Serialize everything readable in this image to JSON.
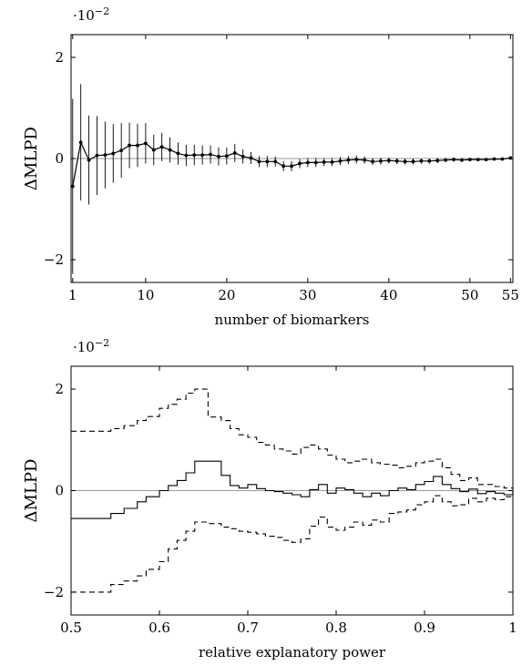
{
  "chart_data": [
    {
      "type": "line",
      "xlabel": "number of biomarkers",
      "ylabel": "ΔMLPD",
      "scale_label": "·10",
      "scale_exponent": "−2",
      "xlim": [
        0.8,
        55.3
      ],
      "ylim": [
        -2.45,
        2.45
      ],
      "xticks": [
        1,
        10,
        20,
        30,
        40,
        50,
        55
      ],
      "yticks": [
        2,
        0,
        -2
      ],
      "ytick_labels": [
        "2",
        "0",
        "−2"
      ],
      "error_bars": true,
      "series": [
        {
          "x": [
            1,
            2,
            3,
            4,
            5,
            6,
            7,
            8,
            9,
            10,
            11,
            12,
            13,
            14,
            15,
            16,
            17,
            18,
            19,
            20,
            21,
            22,
            23,
            24,
            25,
            26,
            27,
            28,
            29,
            30,
            31,
            32,
            33,
            34,
            35,
            36,
            37,
            38,
            39,
            40,
            41,
            42,
            43,
            44,
            45,
            46,
            47,
            48,
            49,
            50,
            51,
            52,
            53,
            54,
            55
          ],
          "y": [
            -0.55,
            0.32,
            -0.03,
            0.06,
            0.07,
            0.1,
            0.16,
            0.26,
            0.26,
            0.3,
            0.17,
            0.23,
            0.17,
            0.1,
            0.06,
            0.07,
            0.07,
            0.08,
            0.04,
            0.05,
            0.11,
            0.04,
            0.01,
            -0.06,
            -0.06,
            -0.06,
            -0.15,
            -0.15,
            -0.1,
            -0.08,
            -0.08,
            -0.07,
            -0.07,
            -0.05,
            -0.03,
            -0.02,
            -0.03,
            -0.06,
            -0.05,
            -0.04,
            -0.05,
            -0.06,
            -0.06,
            -0.05,
            -0.05,
            -0.04,
            -0.03,
            -0.02,
            -0.03,
            -0.02,
            -0.02,
            -0.02,
            -0.01,
            -0.01,
            0.01
          ],
          "err": [
            1.73,
            1.15,
            0.88,
            0.78,
            0.66,
            0.58,
            0.54,
            0.45,
            0.43,
            0.4,
            0.3,
            0.28,
            0.25,
            0.22,
            0.21,
            0.2,
            0.19,
            0.18,
            0.18,
            0.17,
            0.18,
            0.14,
            0.12,
            0.11,
            0.11,
            0.1,
            0.1,
            0.1,
            0.09,
            0.09,
            0.09,
            0.08,
            0.08,
            0.08,
            0.08,
            0.08,
            0.07,
            0.07,
            0.07,
            0.06,
            0.06,
            0.06,
            0.06,
            0.05,
            0.05,
            0.05,
            0.04,
            0.04,
            0.04,
            0.03,
            0.03,
            0.03,
            0.02,
            0.02,
            0.02
          ]
        }
      ]
    },
    {
      "type": "line",
      "xlabel": "relative explanatory power",
      "ylabel": "ΔMLPD",
      "scale_label": "·10",
      "scale_exponent": "−2",
      "xlim": [
        0.5,
        1.0
      ],
      "ylim": [
        -2.45,
        2.45
      ],
      "xticks": [
        0.5,
        0.6,
        0.7,
        0.8,
        0.9,
        1
      ],
      "xtick_labels": [
        "0.5",
        "0.6",
        "0.7",
        "0.8",
        "0.9",
        "1"
      ],
      "yticks": [
        2,
        0,
        -2
      ],
      "ytick_labels": [
        "2",
        "0",
        "−2"
      ],
      "series": [
        {
          "style": "solid",
          "x": [
            0.5,
            0.54,
            0.545,
            0.56,
            0.575,
            0.585,
            0.6,
            0.61,
            0.62,
            0.63,
            0.64,
            0.655,
            0.67,
            0.68,
            0.69,
            0.7,
            0.71,
            0.72,
            0.73,
            0.74,
            0.75,
            0.76,
            0.77,
            0.78,
            0.79,
            0.8,
            0.81,
            0.82,
            0.83,
            0.84,
            0.85,
            0.86,
            0.87,
            0.88,
            0.89,
            0.9,
            0.91,
            0.92,
            0.93,
            0.94,
            0.95,
            0.96,
            0.97,
            0.98,
            0.99,
            1.0
          ],
          "y": [
            -0.55,
            -0.55,
            -0.45,
            -0.35,
            -0.22,
            -0.12,
            0.0,
            0.1,
            0.2,
            0.35,
            0.58,
            0.58,
            0.3,
            0.1,
            0.05,
            0.12,
            0.04,
            0.0,
            -0.02,
            -0.05,
            -0.08,
            -0.12,
            0.02,
            0.12,
            -0.05,
            0.05,
            0.02,
            -0.05,
            -0.12,
            -0.05,
            -0.1,
            0.0,
            0.05,
            0.02,
            0.12,
            0.18,
            0.28,
            0.12,
            0.04,
            -0.02,
            0.03,
            -0.06,
            -0.02,
            -0.05,
            -0.08,
            0.0
          ]
        },
        {
          "style": "dashed",
          "x": [
            0.5,
            0.54,
            0.545,
            0.56,
            0.575,
            0.585,
            0.6,
            0.61,
            0.62,
            0.63,
            0.64,
            0.655,
            0.67,
            0.68,
            0.69,
            0.7,
            0.71,
            0.72,
            0.73,
            0.74,
            0.75,
            0.76,
            0.77,
            0.78,
            0.79,
            0.8,
            0.81,
            0.82,
            0.83,
            0.84,
            0.85,
            0.86,
            0.87,
            0.88,
            0.89,
            0.9,
            0.91,
            0.92,
            0.93,
            0.94,
            0.95,
            0.96,
            0.97,
            0.98,
            0.99,
            1.0
          ],
          "y": [
            1.17,
            1.17,
            1.22,
            1.28,
            1.38,
            1.46,
            1.62,
            1.7,
            1.8,
            1.92,
            2.0,
            1.45,
            1.38,
            1.22,
            1.1,
            1.05,
            0.95,
            0.9,
            0.82,
            0.78,
            0.72,
            0.85,
            0.9,
            0.82,
            0.7,
            0.62,
            0.55,
            0.58,
            0.62,
            0.55,
            0.52,
            0.5,
            0.45,
            0.48,
            0.55,
            0.58,
            0.62,
            0.45,
            0.32,
            0.2,
            0.25,
            0.12,
            0.12,
            0.08,
            0.05,
            0.0
          ]
        },
        {
          "style": "dashed",
          "x": [
            0.5,
            0.54,
            0.545,
            0.56,
            0.575,
            0.585,
            0.6,
            0.61,
            0.62,
            0.63,
            0.64,
            0.655,
            0.67,
            0.68,
            0.69,
            0.7,
            0.71,
            0.72,
            0.73,
            0.74,
            0.75,
            0.76,
            0.77,
            0.78,
            0.79,
            0.8,
            0.81,
            0.82,
            0.83,
            0.84,
            0.85,
            0.86,
            0.87,
            0.88,
            0.89,
            0.9,
            0.91,
            0.92,
            0.93,
            0.94,
            0.95,
            0.96,
            0.97,
            0.98,
            0.99,
            1.0
          ],
          "y": [
            -2.0,
            -2.0,
            -1.85,
            -1.78,
            -1.68,
            -1.55,
            -1.4,
            -1.15,
            -0.98,
            -0.8,
            -0.62,
            -0.65,
            -0.72,
            -0.75,
            -0.8,
            -0.82,
            -0.85,
            -0.9,
            -0.92,
            -0.98,
            -1.02,
            -0.95,
            -0.7,
            -0.52,
            -0.72,
            -0.78,
            -0.72,
            -0.62,
            -0.68,
            -0.58,
            -0.62,
            -0.45,
            -0.42,
            -0.38,
            -0.28,
            -0.22,
            -0.1,
            -0.22,
            -0.3,
            -0.28,
            -0.15,
            -0.22,
            -0.15,
            -0.18,
            -0.12,
            0.0
          ]
        }
      ],
      "reference_line": 0
    }
  ]
}
